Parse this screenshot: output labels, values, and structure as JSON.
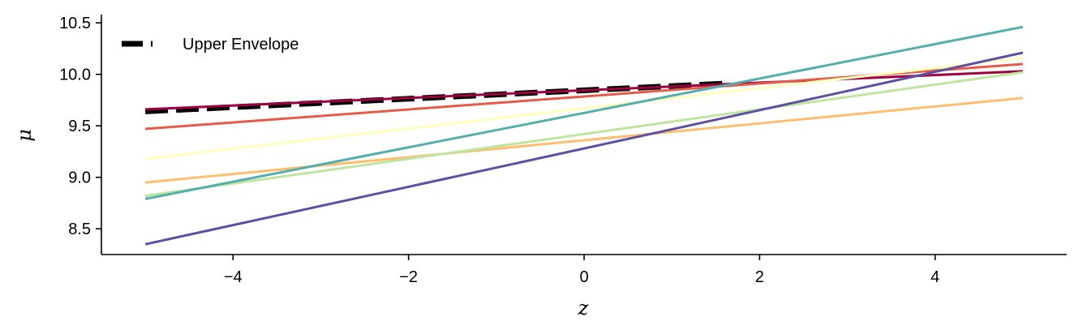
{
  "chart_data": {
    "type": "line",
    "xlabel": "z",
    "ylabel": "μ",
    "xlim": [
      -5.5,
      5.5
    ],
    "ylim": [
      8.25,
      10.58
    ],
    "xticks": [
      -4,
      -2,
      0,
      2,
      4
    ],
    "yticks": [
      8.5,
      9.0,
      9.5,
      10.0,
      10.5
    ],
    "xtick_labels": [
      "−4",
      "−2",
      "0",
      "2",
      "4"
    ],
    "ytick_labels": [
      "8.5",
      "9.0",
      "9.5",
      "10.0",
      "10.5"
    ],
    "grid": false,
    "legend_position": "top-left",
    "series": [
      {
        "color": "#9e0142",
        "x": [
          -5,
          5
        ],
        "y": [
          9.66,
          10.03
        ]
      },
      {
        "color": "#e45c49",
        "x": [
          -5,
          5
        ],
        "y": [
          9.47,
          10.1
        ]
      },
      {
        "color": "#fdbe6e",
        "x": [
          -5,
          5
        ],
        "y": [
          8.95,
          9.77
        ]
      },
      {
        "color": "#ffffbe",
        "x": [
          -5,
          5
        ],
        "y": [
          9.18,
          10.16
        ]
      },
      {
        "color": "#bee5a0",
        "x": [
          -5,
          5
        ],
        "y": [
          8.82,
          10.02
        ]
      },
      {
        "color": "#54aead",
        "x": [
          -5,
          5
        ],
        "y": [
          8.79,
          10.46
        ]
      },
      {
        "color": "#5e4fa2",
        "x": [
          -5,
          5
        ],
        "y": [
          8.35,
          10.21
        ]
      },
      {
        "name": "Upper Envelope",
        "color": "#000000",
        "dashed": true,
        "x": [
          -5,
          1.6
        ],
        "y": [
          9.64,
          9.91
        ]
      }
    ],
    "legend": [
      {
        "label": "Upper Envelope",
        "color": "#000000",
        "dashed": true
      }
    ]
  }
}
